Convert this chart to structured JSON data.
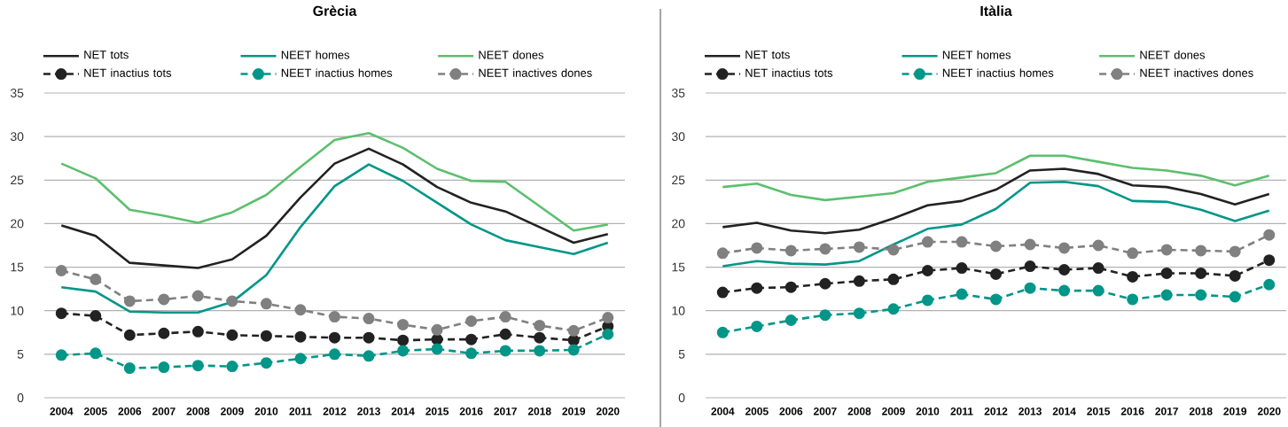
{
  "chart_data": [
    {
      "type": "line",
      "title": "Grècia",
      "categories": [
        "2004",
        "2005",
        "2006",
        "2007",
        "2008",
        "2009",
        "2010",
        "2011",
        "2012",
        "2013",
        "2014",
        "2015",
        "2016",
        "2017",
        "2018",
        "2019",
        "2020"
      ],
      "ylim": [
        0,
        35
      ],
      "yticks": [
        0,
        5,
        10,
        15,
        20,
        25,
        30,
        35
      ],
      "grid": "y",
      "legend": "top",
      "series": [
        {
          "name": "NET tots",
          "color": "#222222",
          "line_style": "solid",
          "marker": "none",
          "values": [
            19.8,
            18.6,
            15.5,
            15.2,
            14.9,
            15.9,
            18.6,
            23.0,
            26.9,
            28.6,
            26.8,
            24.2,
            22.4,
            21.4,
            19.6,
            17.8,
            18.8
          ]
        },
        {
          "name": "NEET homes",
          "color": "#009688",
          "line_style": "solid",
          "marker": "none",
          "values": [
            12.7,
            12.2,
            9.9,
            9.8,
            9.8,
            11.0,
            14.1,
            19.6,
            24.3,
            26.8,
            24.9,
            22.4,
            19.9,
            18.1,
            17.3,
            16.5,
            17.8
          ]
        },
        {
          "name": "NEET dones",
          "color": "#5cbf6e",
          "line_style": "solid",
          "marker": "none",
          "values": [
            26.9,
            25.2,
            21.6,
            20.9,
            20.1,
            21.3,
            23.3,
            26.5,
            29.6,
            30.4,
            28.7,
            26.3,
            24.9,
            24.8,
            22.0,
            19.2,
            19.9
          ]
        },
        {
          "name": "NET inactius tots",
          "color": "#222222",
          "line_style": "dashed",
          "marker": "circle",
          "values": [
            9.7,
            9.4,
            7.2,
            7.4,
            7.6,
            7.2,
            7.1,
            7.0,
            6.9,
            6.9,
            6.6,
            6.7,
            6.7,
            7.3,
            6.9,
            6.6,
            8.2
          ]
        },
        {
          "name": "NEET inactius homes",
          "color": "#009688",
          "line_style": "dashed",
          "marker": "circle",
          "values": [
            4.9,
            5.1,
            3.4,
            3.5,
            3.7,
            3.6,
            4.0,
            4.5,
            5.0,
            4.8,
            5.4,
            5.6,
            5.1,
            5.4,
            5.4,
            5.5,
            7.3
          ]
        },
        {
          "name": "NEET inactives dones",
          "color": "#808080",
          "line_style": "dashed",
          "marker": "circle",
          "values": [
            14.6,
            13.6,
            11.1,
            11.3,
            11.7,
            11.1,
            10.8,
            10.1,
            9.3,
            9.1,
            8.4,
            7.8,
            8.8,
            9.3,
            8.3,
            7.7,
            9.2
          ]
        }
      ]
    },
    {
      "type": "line",
      "title": "Itàlia",
      "categories": [
        "2004",
        "2005",
        "2006",
        "2007",
        "2008",
        "2009",
        "2010",
        "2011",
        "2012",
        "2013",
        "2014",
        "2015",
        "2016",
        "2017",
        "2018",
        "2019",
        "2020"
      ],
      "ylim": [
        0,
        35
      ],
      "yticks": [
        0,
        5,
        10,
        15,
        20,
        25,
        30,
        35
      ],
      "grid": "y",
      "legend": "top",
      "series": [
        {
          "name": "NET tots",
          "color": "#222222",
          "line_style": "solid",
          "marker": "none",
          "values": [
            19.6,
            20.1,
            19.2,
            18.9,
            19.3,
            20.6,
            22.1,
            22.6,
            23.9,
            26.1,
            26.3,
            25.7,
            24.4,
            24.2,
            23.4,
            22.2,
            23.4
          ]
        },
        {
          "name": "NEET homes",
          "color": "#009688",
          "line_style": "solid",
          "marker": "none",
          "values": [
            15.1,
            15.7,
            15.4,
            15.3,
            15.7,
            17.6,
            19.4,
            19.9,
            21.7,
            24.7,
            24.8,
            24.3,
            22.6,
            22.5,
            21.6,
            20.3,
            21.5
          ]
        },
        {
          "name": "NEET dones",
          "color": "#5cbf6e",
          "line_style": "solid",
          "marker": "none",
          "values": [
            24.2,
            24.6,
            23.3,
            22.7,
            23.1,
            23.5,
            24.8,
            25.3,
            25.8,
            27.8,
            27.8,
            27.1,
            26.4,
            26.1,
            25.5,
            24.4,
            25.5
          ]
        },
        {
          "name": "NET inactius tots",
          "color": "#222222",
          "line_style": "dashed",
          "marker": "circle",
          "values": [
            12.1,
            12.6,
            12.7,
            13.1,
            13.4,
            13.6,
            14.6,
            14.9,
            14.2,
            15.1,
            14.7,
            14.9,
            13.9,
            14.3,
            14.3,
            14.0,
            15.8
          ]
        },
        {
          "name": "NEET inactius homes",
          "color": "#009688",
          "line_style": "dashed",
          "marker": "circle",
          "values": [
            7.5,
            8.2,
            8.9,
            9.5,
            9.7,
            10.2,
            11.2,
            11.9,
            11.3,
            12.6,
            12.3,
            12.3,
            11.3,
            11.8,
            11.8,
            11.6,
            13.0
          ]
        },
        {
          "name": "NEET inactives dones",
          "color": "#808080",
          "line_style": "dashed",
          "marker": "circle",
          "values": [
            16.6,
            17.2,
            16.9,
            17.1,
            17.3,
            17.0,
            17.9,
            17.9,
            17.4,
            17.6,
            17.2,
            17.5,
            16.6,
            17.0,
            16.9,
            16.8,
            18.7
          ]
        }
      ]
    }
  ]
}
